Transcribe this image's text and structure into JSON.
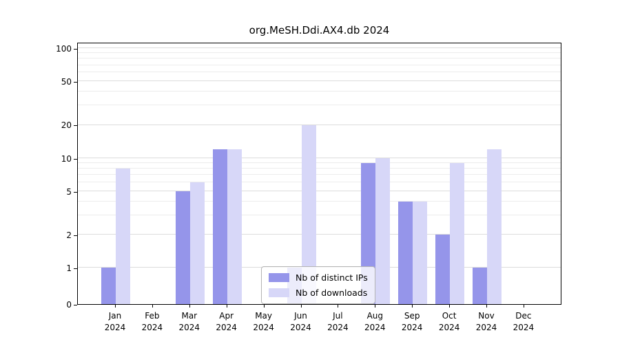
{
  "title": "org.MeSH.Ddi.AX4.db 2024",
  "chart_data": {
    "type": "bar",
    "title": "org.MeSH.Ddi.AX4.db 2024",
    "categories": [
      "Jan 2024",
      "Feb 2024",
      "Mar 2024",
      "Apr 2024",
      "May 2024",
      "Jun 2024",
      "Jul 2024",
      "Aug 2024",
      "Sep 2024",
      "Oct 2024",
      "Nov 2024",
      "Dec 2024"
    ],
    "series": [
      {
        "name": "Nb of distinct IPs",
        "color": "#9595ea",
        "values": [
          1,
          0,
          5,
          12,
          0,
          1,
          0,
          9,
          4,
          2,
          1,
          0
        ]
      },
      {
        "name": "Nb of downloads",
        "color": "#d7d7f8",
        "values": [
          8,
          0,
          6,
          12,
          0,
          20,
          0,
          10,
          4,
          9,
          12,
          0
        ]
      }
    ],
    "yscale": "log (with zero baseline)",
    "ylim": [
      0,
      100
    ],
    "yticks": [
      0,
      1,
      2,
      5,
      10,
      20,
      50,
      100
    ],
    "yticks_minor": [
      3,
      4,
      6,
      7,
      8,
      9,
      30,
      40,
      60,
      70,
      80,
      90
    ],
    "xlabel": "",
    "ylabel": "",
    "grid": true,
    "legend_position": "lower center"
  }
}
